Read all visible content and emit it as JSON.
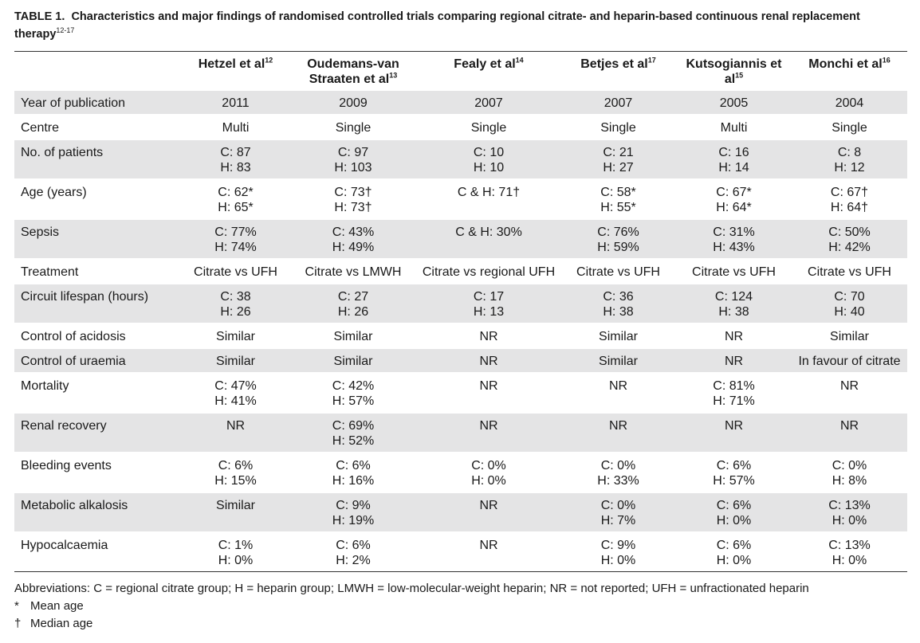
{
  "caption": {
    "lead": "TABLE 1.",
    "text": "Characteristics and major findings of randomised controlled trials comparing regional citrate- and heparin-based continuous renal replacement therapy",
    "sup": "12-17"
  },
  "columns": [
    {
      "name": "Hetzel et al",
      "sup": "12"
    },
    {
      "name": "Oudemans-van Straaten et al",
      "sup": "13"
    },
    {
      "name": "Fealy et al",
      "sup": "14"
    },
    {
      "name": "Betjes et al",
      "sup": "17"
    },
    {
      "name": "Kutsogiannis et al",
      "sup": "15"
    },
    {
      "name": "Monchi et al",
      "sup": "16"
    }
  ],
  "rows": [
    {
      "label": "Year of publication",
      "cells": [
        [
          "2011"
        ],
        [
          "2009"
        ],
        [
          "2007"
        ],
        [
          "2007"
        ],
        [
          "2005"
        ],
        [
          "2004"
        ]
      ]
    },
    {
      "label": "Centre",
      "cells": [
        [
          "Multi"
        ],
        [
          "Single"
        ],
        [
          "Single"
        ],
        [
          "Single"
        ],
        [
          "Multi"
        ],
        [
          "Single"
        ]
      ]
    },
    {
      "label": "No. of patients",
      "cells": [
        [
          "C: 87",
          "H: 83"
        ],
        [
          "C: 97",
          "H: 103"
        ],
        [
          "C: 10",
          "H: 10"
        ],
        [
          "C: 21",
          "H: 27"
        ],
        [
          "C: 16",
          "H: 14"
        ],
        [
          "C: 8",
          "H: 12"
        ]
      ]
    },
    {
      "label": "Age (years)",
      "cells": [
        [
          "C: 62*",
          "H: 65*"
        ],
        [
          "C: 73†",
          "H: 73†"
        ],
        [
          "C & H: 71†"
        ],
        [
          "C: 58*",
          "H: 55*"
        ],
        [
          "C: 67*",
          "H: 64*"
        ],
        [
          "C: 67†",
          "H: 64†"
        ]
      ]
    },
    {
      "label": "Sepsis",
      "cells": [
        [
          "C: 77%",
          "H: 74%"
        ],
        [
          "C: 43%",
          "H: 49%"
        ],
        [
          "C & H: 30%"
        ],
        [
          "C: 76%",
          "H: 59%"
        ],
        [
          "C: 31%",
          "H: 43%"
        ],
        [
          "C: 50%",
          "H: 42%"
        ]
      ]
    },
    {
      "label": "Treatment",
      "cells": [
        [
          "Citrate vs UFH"
        ],
        [
          "Citrate vs LMWH"
        ],
        [
          "Citrate vs regional UFH"
        ],
        [
          "Citrate vs UFH"
        ],
        [
          "Citrate vs UFH"
        ],
        [
          "Citrate vs UFH"
        ]
      ]
    },
    {
      "label": "Circuit lifespan (hours)",
      "cells": [
        [
          "C: 38",
          "H: 26"
        ],
        [
          "C: 27",
          "H: 26"
        ],
        [
          "C: 17",
          "H: 13"
        ],
        [
          "C: 36",
          "H: 38"
        ],
        [
          "C: 124",
          "H: 38"
        ],
        [
          "C: 70",
          "H: 40"
        ]
      ]
    },
    {
      "label": "Control of acidosis",
      "cells": [
        [
          "Similar"
        ],
        [
          "Similar"
        ],
        [
          "NR"
        ],
        [
          "Similar"
        ],
        [
          "NR"
        ],
        [
          "Similar"
        ]
      ]
    },
    {
      "label": "Control of uraemia",
      "cells": [
        [
          "Similar"
        ],
        [
          "Similar"
        ],
        [
          "NR"
        ],
        [
          "Similar"
        ],
        [
          "NR"
        ],
        [
          "In favour of citrate"
        ]
      ]
    },
    {
      "label": "Mortality",
      "cells": [
        [
          "C: 47%",
          "H: 41%"
        ],
        [
          "C: 42%",
          "H: 57%"
        ],
        [
          "NR"
        ],
        [
          "NR"
        ],
        [
          "C: 81%",
          "H: 71%"
        ],
        [
          "NR"
        ]
      ]
    },
    {
      "label": "Renal recovery",
      "cells": [
        [
          "NR"
        ],
        [
          "C: 69%",
          "H: 52%"
        ],
        [
          "NR"
        ],
        [
          "NR"
        ],
        [
          "NR"
        ],
        [
          "NR"
        ]
      ]
    },
    {
      "label": "Bleeding events",
      "cells": [
        [
          "C: 6%",
          "H: 15%"
        ],
        [
          "C: 6%",
          "H: 16%"
        ],
        [
          "C: 0%",
          "H: 0%"
        ],
        [
          "C: 0%",
          "H: 33%"
        ],
        [
          "C: 6%",
          "H: 57%"
        ],
        [
          "C: 0%",
          "H: 8%"
        ]
      ]
    },
    {
      "label": "Metabolic alkalosis",
      "cells": [
        [
          "Similar"
        ],
        [
          "C: 9%",
          "H: 19%"
        ],
        [
          "NR"
        ],
        [
          "C: 0%",
          "H: 7%"
        ],
        [
          "C: 6%",
          "H: 0%"
        ],
        [
          "C: 13%",
          "H: 0%"
        ]
      ]
    },
    {
      "label": "Hypocalcaemia",
      "cells": [
        [
          "C: 1%",
          "H: 0%"
        ],
        [
          "C: 6%",
          "H: 2%"
        ],
        [
          "NR"
        ],
        [
          "C: 9%",
          "H: 0%"
        ],
        [
          "C: 6%",
          "H: 0%"
        ],
        [
          "C: 13%",
          "H: 0%"
        ]
      ]
    }
  ],
  "notes": {
    "abbreviations": "Abbreviations: C = regional citrate group; H = heparin group; LMWH = low-molecular-weight heparin; NR = not reported; UFH = unfractionated heparin",
    "footnotes": [
      {
        "symbol": "*",
        "text": "Mean age"
      },
      {
        "symbol": "†",
        "text": "Median age"
      }
    ]
  },
  "colors": {
    "row_shade": "#e4e4e5",
    "rule": "#333333"
  }
}
